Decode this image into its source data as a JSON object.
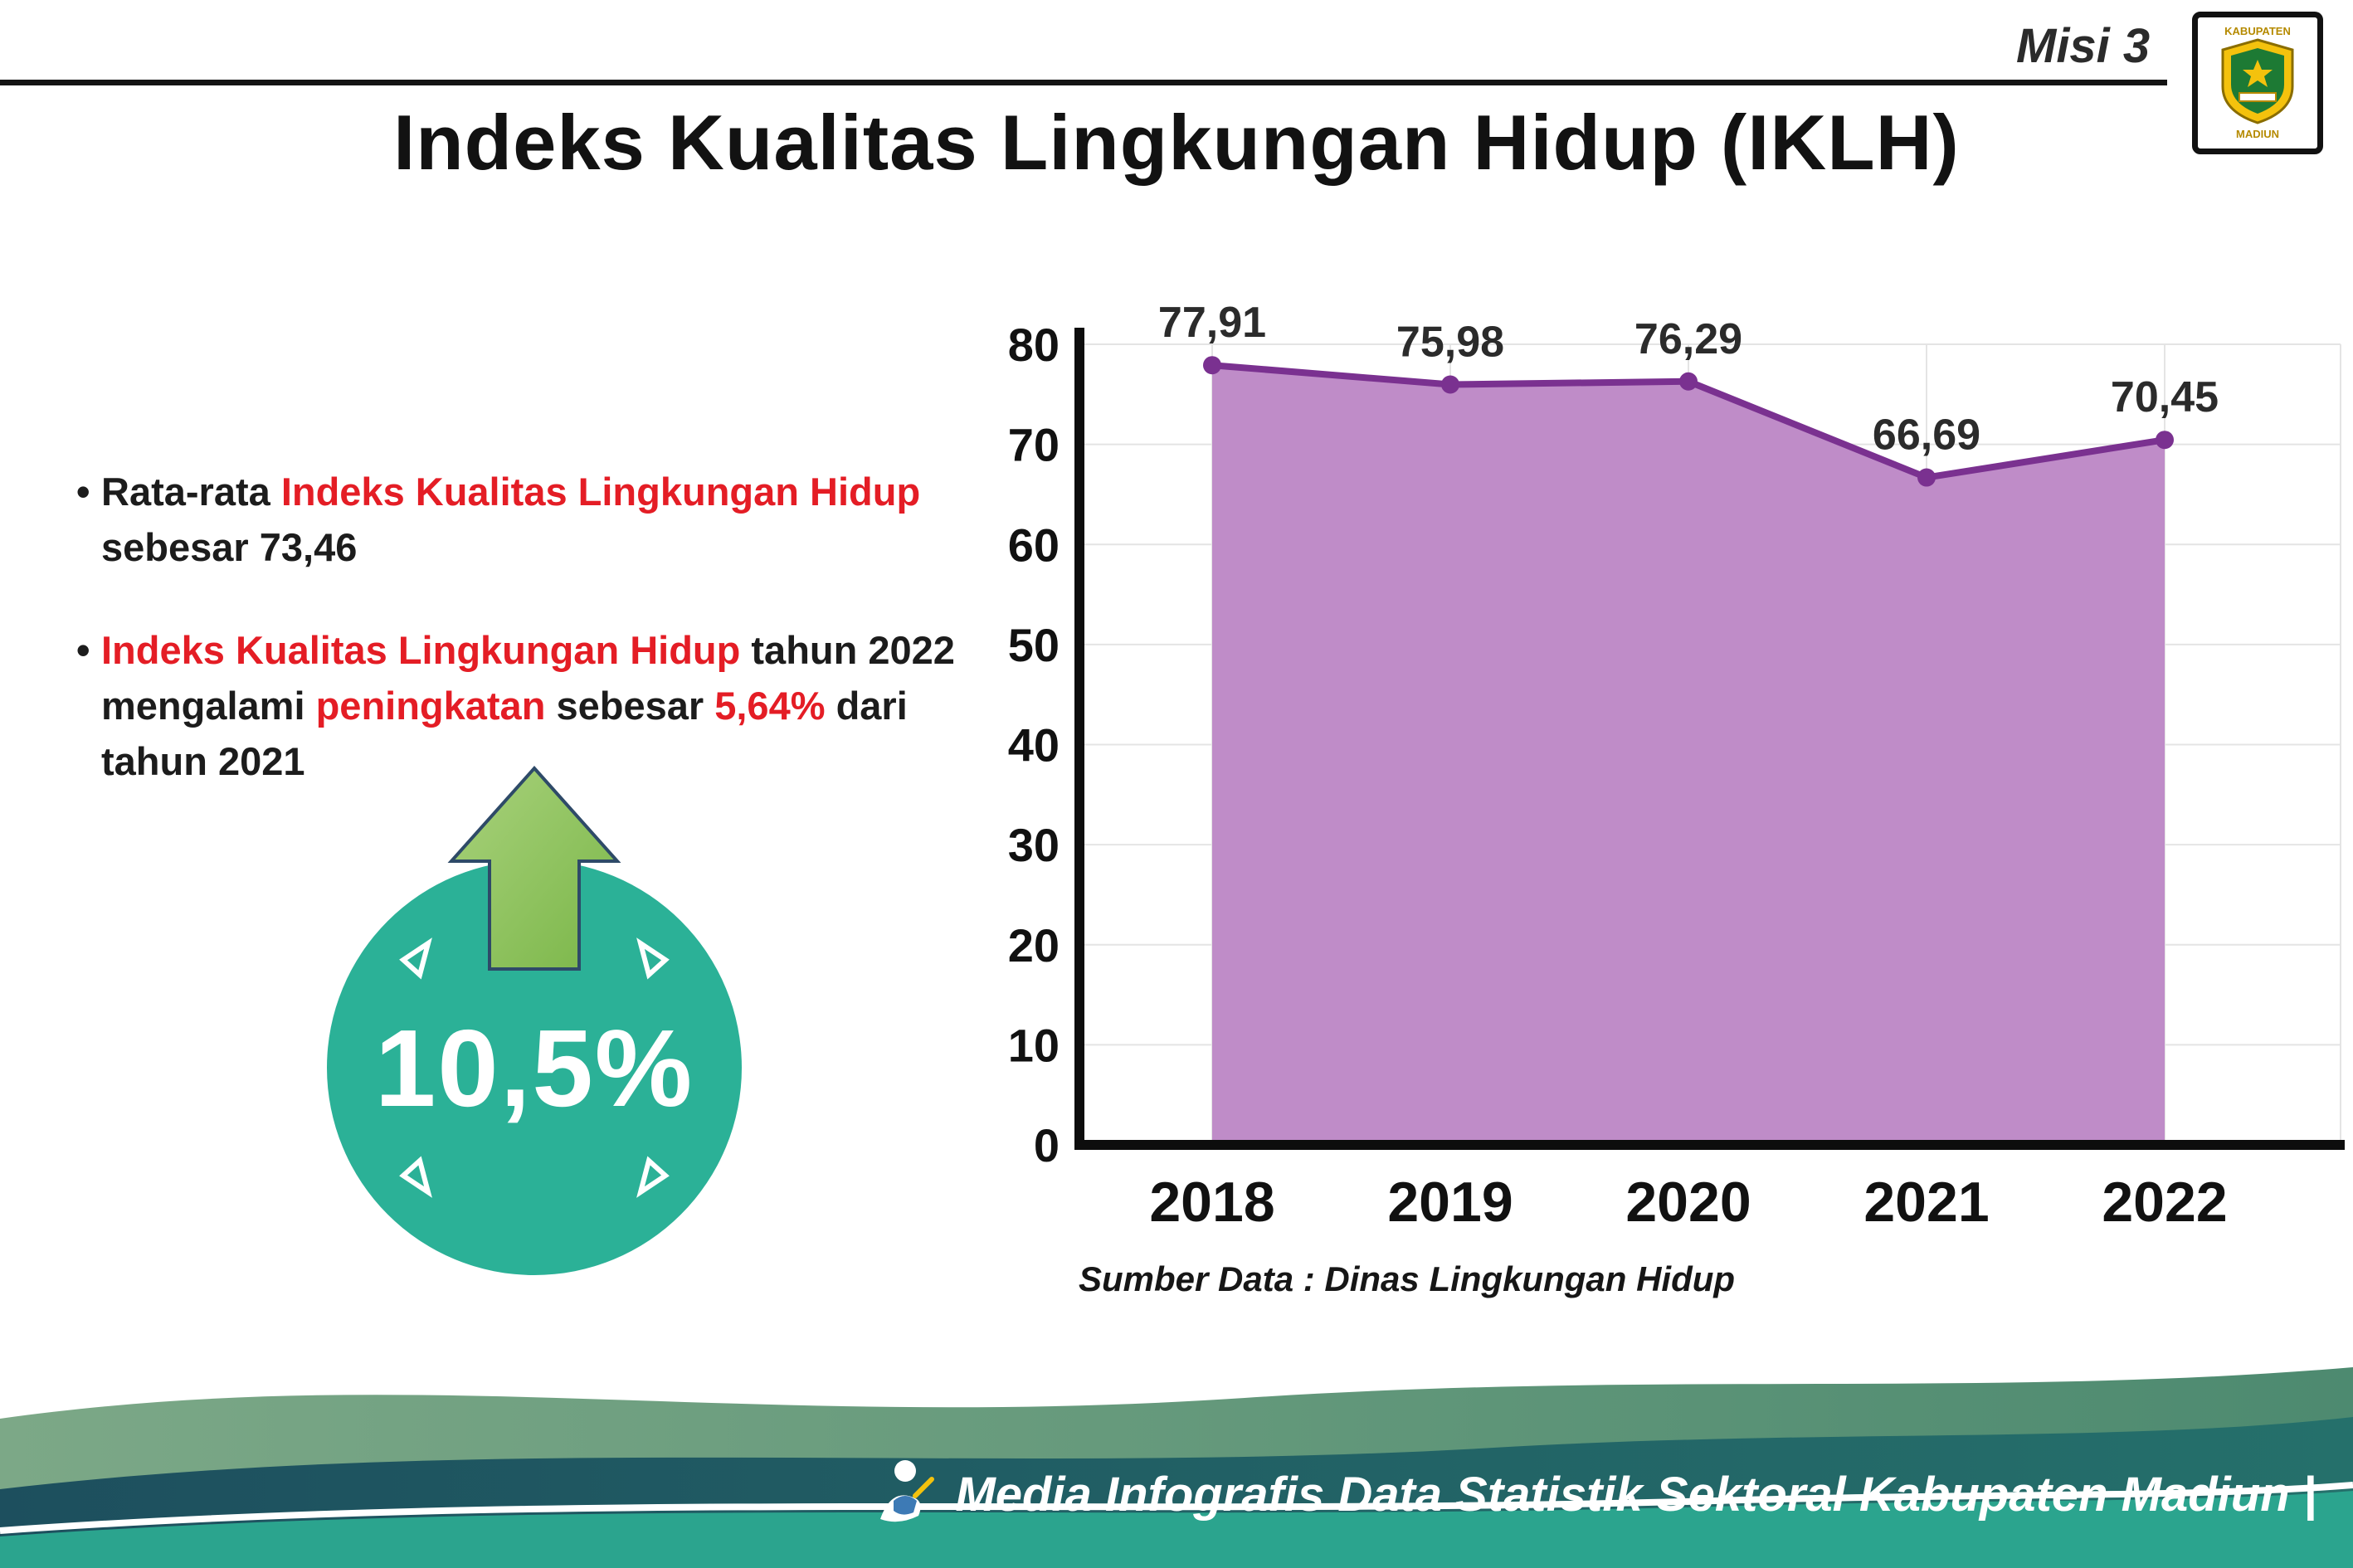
{
  "header": {
    "misi": "Misi 3",
    "title": "Indeks Kualitas Lingkungan Hidup (IKLH)",
    "logo_top": "KABUPATEN",
    "logo_bottom": "MADIUN"
  },
  "bullets": {
    "bullet_char": "•",
    "b1": [
      {
        "t": "Rata-rata "
      },
      {
        "t": "Indeks Kualitas Lingkungan Hidup",
        "c": "r"
      },
      {
        "br": 1
      },
      {
        "t": "sebesar 73,46"
      }
    ],
    "b2": [
      {
        "t": "Indeks Kualitas Lingkungan Hidup",
        "c": "r"
      },
      {
        "t": " tahun 2022"
      },
      {
        "br": 1
      },
      {
        "t": "mengalami "
      },
      {
        "t": "peningkatan",
        "c": "r"
      },
      {
        "t": " sebesar "
      },
      {
        "t": "5,64%",
        "c": "r"
      },
      {
        "t": " dari"
      },
      {
        "br": 1
      },
      {
        "t": "tahun 2021"
      }
    ]
  },
  "badge": {
    "value": "10,5%"
  },
  "chart_data": {
    "type": "area",
    "title": "Indeks Kualitas Lingkungan Hidup (IKLH)",
    "x": [
      "2018",
      "2019",
      "2020",
      "2021",
      "2022"
    ],
    "values": [
      77.91,
      75.98,
      76.29,
      66.69,
      70.45
    ],
    "value_labels": [
      "77,91",
      "75,98",
      "76,29",
      "66,69",
      "70,45"
    ],
    "ylim": [
      0,
      80
    ],
    "yticks": [
      0,
      10,
      20,
      30,
      40,
      50,
      60,
      70,
      80
    ],
    "xlabel": "",
    "ylabel": "",
    "legend": "none",
    "grid": "light",
    "line_color": "#7a3190",
    "fill_color": "#bf8cc8",
    "point_color": "#7a3190",
    "label_color": "#2b2b2b",
    "axis_color": "#0d0d0d",
    "grid_color": "#e4e4e4",
    "tick_color": "#111111"
  },
  "source": {
    "text": "Sumber Data : Dinas Lingkungan Hidup"
  },
  "footer": {
    "credit": "Media Infografis Data Statistik Sektoral Kabupaten Madiun |"
  },
  "colors": {
    "accent_red": "#e41d25",
    "badge_teal": "#2bb197",
    "arrow_green": "#93c464",
    "footer_sage": "#6fa27c",
    "footer_dark_teal": "#1d5560",
    "footer_teal": "#2ba48e"
  }
}
